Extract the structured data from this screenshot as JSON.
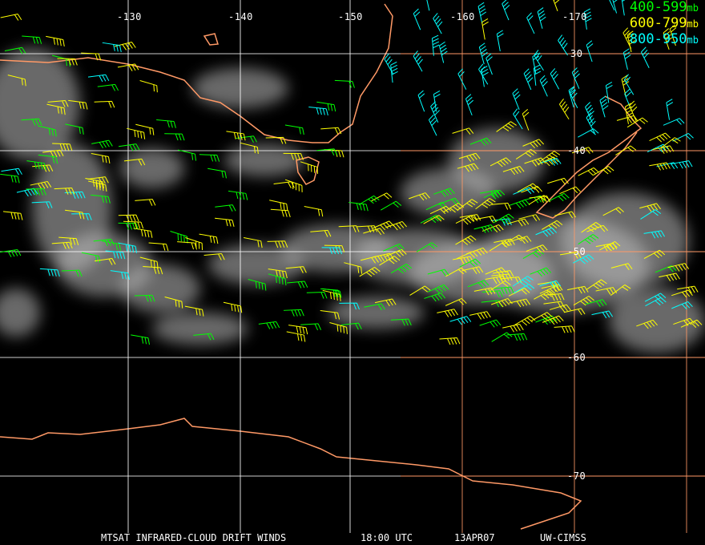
{
  "map": {
    "longitude_labels": [
      "-130",
      "-140",
      "-150",
      "-160",
      "-170"
    ],
    "latitude_labels": [
      "30",
      "-40",
      "-50",
      "-60",
      "-70"
    ],
    "colors": {
      "grid_west": "#ffffff",
      "grid_east": "#ff9966",
      "coastline": "#ff9966",
      "cloud": "#bfbfbf"
    }
  },
  "legend": [
    {
      "range": "400-599",
      "unit": "mb",
      "color": "#00ff00"
    },
    {
      "range": "600-799",
      "unit": "mb",
      "color": "#ffff00"
    },
    {
      "range": "800-950",
      "unit": "mb",
      "color": "#00ffff"
    }
  ],
  "caption": {
    "title": "MTSAT INFRARED-CLOUD DRIFT WINDS",
    "time": "18:00 UTC",
    "date": "13APR07",
    "source": "UW-CIMSS"
  }
}
